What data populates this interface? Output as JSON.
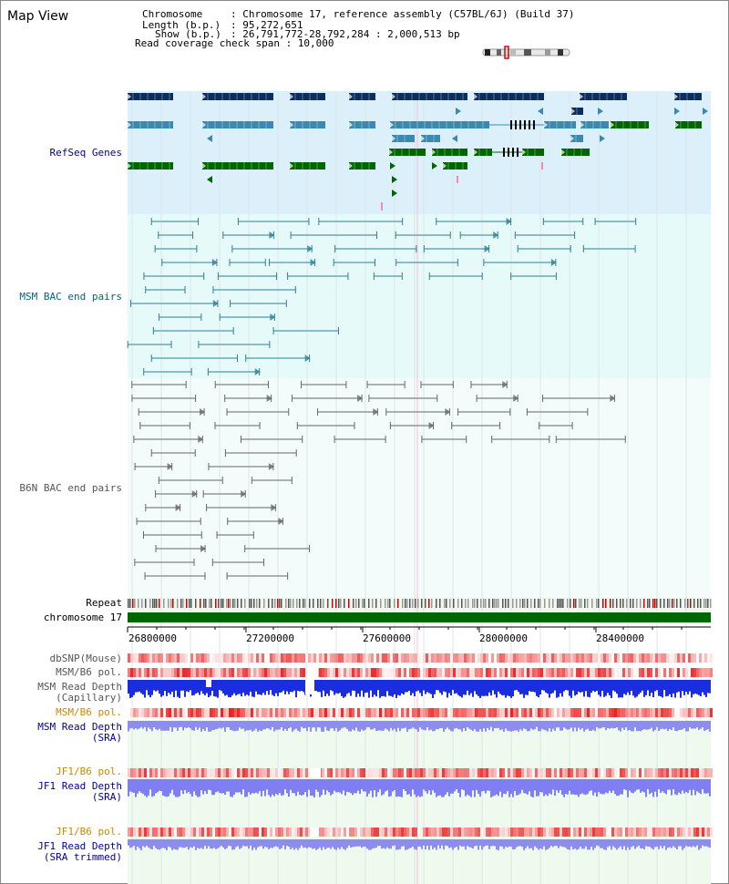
{
  "page_title": "Map View",
  "header": {
    "chromosome_key": "Chromosome",
    "chromosome_val": ": Chromosome 17, reference assembly (C57BL/6J) (Build 37)",
    "length_key": "Length (b.p.)",
    "length_val": ": 95,272,651",
    "show_key": "Show (b.p.)",
    "show_val": ": 26,791,772-28,792,284 : 2,000,513 bp",
    "coverage_label": "Read coverage check span : 10,000"
  },
  "tracks": {
    "refseq": "RefSeq Genes",
    "msm_bac": "MSM BAC end pairs",
    "b6n_bac": "B6N BAC end pairs",
    "repeat": "Repeat",
    "chromosome": "chromosome 17",
    "dbsnp": "dbSNP(Mouse)",
    "msm_b6_pol_1": "MSM/B6 pol.",
    "msm_depth_cap_1": "MSM Read Depth",
    "msm_depth_cap_2": "(Capillary)",
    "msm_b6_pol_2": "MSM/B6 pol.",
    "msm_depth_sra_1": "MSM Read Depth",
    "msm_depth_sra_2": "(SRA)",
    "jf1_b6_pol_1": "JF1/B6 pol.",
    "jf1_depth_sra_1": "JF1 Read Depth",
    "jf1_depth_sra_2": "(SRA)",
    "jf1_b6_pol_2": "JF1/B6 pol.",
    "jf1_depth_trim_1": "JF1 Read Depth",
    "jf1_depth_trim_2": "(SRA trimmed)"
  },
  "axis_ticks": [
    "26800000",
    "27200000",
    "27600000",
    "28000000",
    "28400000"
  ],
  "colors": {
    "refseq_bg": "#dcf0fb",
    "msm_bg": "#e6fafa",
    "b6n_bg": "#f4fbfb",
    "sra_bg": "#eefaee",
    "chromosome_bar": "#006600",
    "refseq_label": "#000099",
    "msm_label": "#006677",
    "b6n_label": "#555555",
    "pol_orange": "#cc8800",
    "depth_blue": "#000099",
    "gene_dark": "#0d2d5c",
    "gene_mid": "#3a8ab0",
    "gene_green": "#006600"
  }
}
